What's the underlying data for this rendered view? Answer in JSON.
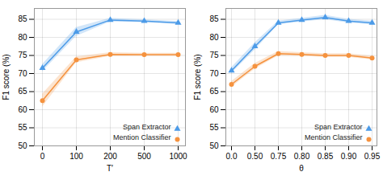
{
  "chart_data": [
    {
      "type": "line",
      "xlabel": "T′",
      "ylabel": "F1 score (%)",
      "categories": [
        "0",
        "100",
        "200",
        "500",
        "1000"
      ],
      "series": [
        {
          "name": "Span Extractor",
          "color": "#4C9BE8",
          "marker": "triangle",
          "values": [
            71.5,
            81.5,
            84.8,
            84.5,
            84.0
          ],
          "errors": [
            1.0,
            1.2,
            0.5,
            0.4,
            0.4
          ]
        },
        {
          "name": "Mention Classifier",
          "color": "#F5923E",
          "marker": "circle",
          "values": [
            62.5,
            73.8,
            75.3,
            75.2,
            75.2
          ],
          "errors": [
            1.8,
            0.8,
            0.5,
            0.4,
            0.4
          ]
        }
      ],
      "ylim": [
        50,
        88
      ],
      "yticks": [
        50,
        55,
        60,
        65,
        70,
        75,
        80,
        85
      ],
      "grid": true,
      "legend": "lower right"
    },
    {
      "type": "line",
      "xlabel": "θ",
      "ylabel": "F1 score (%)",
      "categories": [
        "0.0",
        "0.50",
        "0.75",
        "0.80",
        "0.85",
        "0.90",
        "0.95"
      ],
      "series": [
        {
          "name": "Span Extractor",
          "color": "#4C9BE8",
          "marker": "triangle",
          "values": [
            70.8,
            77.5,
            84.0,
            84.8,
            85.5,
            84.5,
            84.0
          ],
          "errors": [
            0.8,
            1.0,
            0.5,
            0.5,
            0.6,
            0.5,
            0.5
          ]
        },
        {
          "name": "Mention Classifier",
          "color": "#F5923E",
          "marker": "circle",
          "values": [
            67.0,
            72.0,
            75.5,
            75.3,
            75.0,
            75.0,
            74.3
          ],
          "errors": [
            0.8,
            0.8,
            0.6,
            0.5,
            0.5,
            0.5,
            0.5
          ]
        }
      ],
      "ylim": [
        50,
        88
      ],
      "yticks": [
        50,
        55,
        60,
        65,
        70,
        75,
        80,
        85
      ],
      "grid": true,
      "legend": "lower right"
    }
  ]
}
